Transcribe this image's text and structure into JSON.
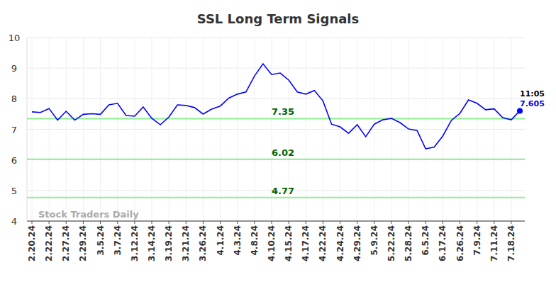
{
  "chart_data": {
    "type": "line",
    "title": "SSL Long Term Signals",
    "watermark": "Stock Traders Daily",
    "annotations": [
      "11:05"
    ],
    "categories": [
      "2.20.24",
      null,
      "2.22.24",
      null,
      "2.27.24",
      null,
      "2.29.24",
      null,
      "3.5.24",
      null,
      "3.7.24",
      null,
      "3.12.24",
      null,
      "3.14.24",
      null,
      "3.19.24",
      null,
      "3.21.24",
      null,
      "3.26.24",
      null,
      "4.1.24",
      null,
      "4.3.24",
      null,
      "4.8.24",
      null,
      "4.10.24",
      null,
      "4.15.24",
      null,
      "4.17.24",
      null,
      "4.22.24",
      null,
      "4.24.24",
      null,
      "4.29.24",
      null,
      "5.9.24",
      null,
      "5.22.24",
      null,
      "5.28.24",
      null,
      "6.5.24",
      null,
      "6.17.24",
      null,
      "6.26.24",
      null,
      "7.9.24",
      null,
      "7.11.24",
      null,
      "7.18.24",
      null
    ],
    "values": [
      7.57,
      7.55,
      7.68,
      7.3,
      7.59,
      7.3,
      7.49,
      7.51,
      7.49,
      7.8,
      7.85,
      7.45,
      7.43,
      7.73,
      7.36,
      7.15,
      7.4,
      7.8,
      7.78,
      7.71,
      7.5,
      7.66,
      7.76,
      8.02,
      8.15,
      8.22,
      8.74,
      9.14,
      8.79,
      8.84,
      8.61,
      8.22,
      8.15,
      8.27,
      7.93,
      7.17,
      7.08,
      6.87,
      7.15,
      6.76,
      7.17,
      7.31,
      7.36,
      7.22,
      7.01,
      6.96,
      6.36,
      6.42,
      6.78,
      7.29,
      7.52,
      7.96,
      7.85,
      7.64,
      7.67,
      7.38,
      7.31,
      7.605
    ],
    "levels": [
      7.35,
      6.02,
      4.77
    ],
    "color": "#0000ff",
    "ylim": [
      4,
      10
    ],
    "yticks": [
      4,
      5,
      6,
      7,
      8,
      9,
      10
    ],
    "grid": true
  }
}
